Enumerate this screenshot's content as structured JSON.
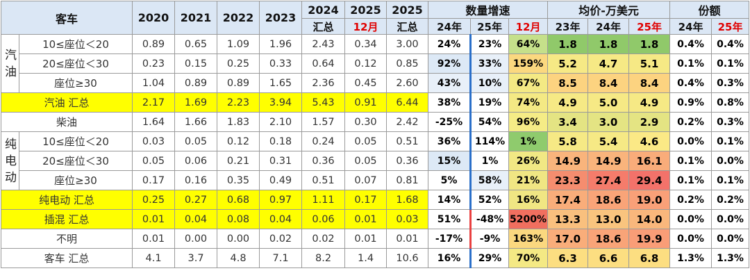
{
  "header": {
    "title": "客车",
    "years": [
      "2020",
      "2021",
      "2022",
      "2023"
    ],
    "y2024": "2024",
    "y2024_sub": "汇总",
    "y2025a": "2025",
    "y2025a_sub": "12月",
    "y2025b": "2025",
    "y2025b_sub": "汇总",
    "growth_title": "数量增速",
    "growth_cols": [
      "24年",
      "25年",
      "12月"
    ],
    "price_title": "均价-万美元",
    "price_cols": [
      "23年",
      "24年",
      "25年"
    ],
    "share_title": "份额",
    "share_cols": [
      "24年",
      "25年"
    ]
  },
  "groups": {
    "gasoline": "汽油",
    "ev": "纯电动"
  },
  "rows": [
    {
      "label": "10≤座位＜20",
      "v": [
        "0.89",
        "0.65",
        "1.09",
        "1.96",
        "2.43",
        "0.34",
        "3.00"
      ],
      "g": [
        "24%",
        "23%",
        "64%"
      ],
      "p": [
        "1.8",
        "1.8",
        "1.8"
      ],
      "s": [
        "0.4%",
        "0.4%"
      ]
    },
    {
      "label": "20≤座位＜30",
      "v": [
        "0.23",
        "0.15",
        "0.25",
        "0.33",
        "0.64",
        "0.12",
        "0.85"
      ],
      "g": [
        "92%",
        "33%",
        "159%"
      ],
      "p": [
        "5.2",
        "4.7",
        "5.1"
      ],
      "s": [
        "0.1%",
        "0.1%"
      ]
    },
    {
      "label": "座位≥30",
      "v": [
        "1.04",
        "0.89",
        "0.89",
        "1.65",
        "2.36",
        "0.45",
        "2.60"
      ],
      "g": [
        "43%",
        "10%",
        "67%"
      ],
      "p": [
        "8.5",
        "8.4",
        "8.4"
      ],
      "s": [
        "0.4%",
        "0.3%"
      ]
    },
    {
      "label": "汽油 汇总",
      "v": [
        "2.17",
        "1.69",
        "2.23",
        "3.94",
        "5.43",
        "0.91",
        "6.44"
      ],
      "g": [
        "38%",
        "19%",
        "74%"
      ],
      "p": [
        "4.9",
        "5.0",
        "4.9"
      ],
      "s": [
        "0.9%",
        "0.8%"
      ]
    },
    {
      "label": "柴油",
      "v": [
        "1.64",
        "1.66",
        "1.83",
        "2.10",
        "1.57",
        "0.30",
        "2.42"
      ],
      "g": [
        "-25%",
        "54%",
        "96%"
      ],
      "p": [
        "3.4",
        "3.0",
        "2.9"
      ],
      "s": [
        "0.2%",
        "0.3%"
      ]
    },
    {
      "label": "10≤座位＜20",
      "v": [
        "0.03",
        "0.05",
        "0.12",
        "0.18",
        "0.24",
        "0.05",
        "0.51"
      ],
      "g": [
        "36%",
        "114%",
        "1%"
      ],
      "p": [
        "5.8",
        "5.4",
        "4.6"
      ],
      "s": [
        "0.0%",
        "0.1%"
      ]
    },
    {
      "label": "20≤座位＜30",
      "v": [
        "0.05",
        "0.06",
        "0.21",
        "0.31",
        "0.36",
        "0.05",
        "0.36"
      ],
      "g": [
        "15%",
        "1%",
        "26%"
      ],
      "p": [
        "14.9",
        "14.9",
        "16.1"
      ],
      "s": [
        "0.1%",
        "0.0%"
      ]
    },
    {
      "label": "座位≥30",
      "v": [
        "0.17",
        "0.16",
        "0.35",
        "0.49",
        "0.51",
        "0.07",
        "0.81"
      ],
      "g": [
        "5%",
        "58%",
        "21%"
      ],
      "p": [
        "23.3",
        "27.4",
        "29.4"
      ],
      "s": [
        "0.1%",
        "0.1%"
      ]
    },
    {
      "label": "纯电动 汇总",
      "v": [
        "0.25",
        "0.27",
        "0.68",
        "0.97",
        "1.11",
        "0.17",
        "1.68"
      ],
      "g": [
        "14%",
        "52%",
        "16%"
      ],
      "p": [
        "17.4",
        "18.6",
        "19.0"
      ],
      "s": [
        "0.2%",
        "0.2%"
      ]
    },
    {
      "label": "插混 汇总",
      "v": [
        "0.01",
        "0.04",
        "0.08",
        "0.04",
        "0.06",
        "0.01",
        "0.03"
      ],
      "g": [
        "51%",
        "-48%",
        "5200%"
      ],
      "p": [
        "13.3",
        "13.0",
        "14.0"
      ],
      "s": [
        "0.0%",
        "0.0%"
      ]
    },
    {
      "label": "不明",
      "v": [
        "0.01",
        "0.00",
        "0.00",
        "0.02",
        "0.02",
        "0.01",
        "0.01"
      ],
      "g": [
        "-17%",
        "-9%",
        "163%"
      ],
      "p": [
        "17.0",
        "18.6",
        "19.9"
      ],
      "s": [
        "0.0%",
        "0.0%"
      ]
    },
    {
      "label": "客车 汇总",
      "v": [
        "4.1",
        "3.7",
        "4.8",
        "7.1",
        "8.2",
        "1.4",
        "10.6"
      ],
      "g": [
        "16%",
        "29%",
        "70%"
      ],
      "p": [
        "6.3",
        "6.6",
        "6.8"
      ],
      "s": [
        "1.3%",
        "1.3%"
      ]
    }
  ],
  "colors": {
    "highlight_yellow": "#ffff00",
    "header_red": "#e00000",
    "bar_blue": "#2a6fc9"
  }
}
